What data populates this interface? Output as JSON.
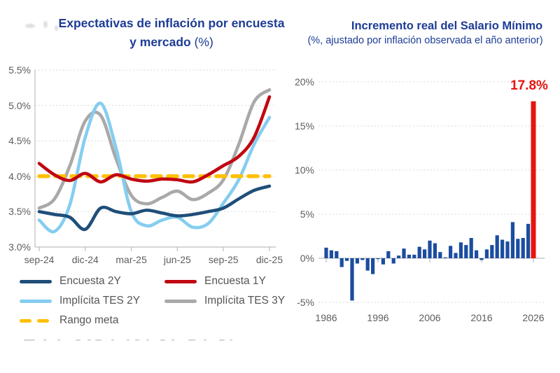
{
  "left_chart": {
    "title_line1": "Expectativas de inflación por encuesta",
    "title_line2": "y mercado",
    "title_unit": "(%)",
    "y_tick_labels": [
      "5.5%",
      "5.0%",
      "4.5%",
      "4.0%",
      "3.5%",
      "3.0%"
    ],
    "x_tick_labels": [
      "sep-24",
      "dic-24",
      "mar-25",
      "jun-25",
      "sep-25",
      "dic-25"
    ],
    "legend": [
      {
        "label": "Encuesta 2Y",
        "color": "#1f4e79",
        "dashed": false
      },
      {
        "label": "Encuesta 1Y",
        "color": "#c00712",
        "dashed": false
      },
      {
        "label": "Implícita TES 2Y",
        "color": "#85cdf0",
        "dashed": false
      },
      {
        "label": "Implícita TES 3Y",
        "color": "#a9a9a9",
        "dashed": false
      },
      {
        "label": "Rango meta",
        "color": "#ffc000",
        "dashed": true
      }
    ]
  },
  "right_chart": {
    "title": "Incremento real del Salario Mínimo",
    "subtitle": "(%, ajustado por inflación observada el año anterior)",
    "y_tick_labels": [
      "20%",
      "15%",
      "10%",
      "5%",
      "0%",
      "-5%"
    ],
    "x_tick_labels": [
      "1986",
      "1996",
      "2006",
      "2016",
      "2026"
    ],
    "annotation_label": "17.8%",
    "annotation_color": "#e8140e"
  },
  "chart_data": [
    {
      "type": "line",
      "title": "Expectativas de inflación por encuesta y mercado (%)",
      "x": [
        "sep-24",
        "oct-24",
        "nov-24",
        "dic-24",
        "ene-25",
        "feb-25",
        "mar-25",
        "abr-25",
        "may-25",
        "jun-25",
        "jul-25",
        "ago-25",
        "sep-25",
        "oct-25",
        "nov-25",
        "dic-25"
      ],
      "ylim": [
        3.0,
        5.5
      ],
      "grid": "dotted-horizontal",
      "legend_position": "bottom",
      "series": [
        {
          "name": "Encuesta 2Y",
          "color": "#1f4e79",
          "z": 4,
          "dashed": false,
          "values": [
            3.5,
            3.46,
            3.42,
            3.25,
            3.55,
            3.5,
            3.47,
            3.52,
            3.48,
            3.44,
            3.46,
            3.5,
            3.55,
            3.68,
            3.8,
            3.86
          ]
        },
        {
          "name": "Encuesta 1Y",
          "color": "#c00712",
          "z": 5,
          "dashed": false,
          "values": [
            4.18,
            4.02,
            3.94,
            4.04,
            3.92,
            4.02,
            3.96,
            3.93,
            3.96,
            3.95,
            3.92,
            4.02,
            4.15,
            4.28,
            4.55,
            5.12
          ]
        },
        {
          "name": "Implícita TES 2Y",
          "color": "#85cdf0",
          "z": 2,
          "dashed": false,
          "values": [
            3.38,
            3.22,
            3.6,
            4.55,
            5.03,
            4.4,
            3.5,
            3.3,
            3.38,
            3.42,
            3.28,
            3.33,
            3.62,
            3.95,
            4.45,
            4.83
          ]
        },
        {
          "name": "Implícita TES 3Y",
          "color": "#a9a9a9",
          "z": 1,
          "dashed": false,
          "values": [
            3.55,
            3.68,
            4.15,
            4.78,
            4.86,
            4.25,
            3.73,
            3.61,
            3.7,
            3.79,
            3.67,
            3.76,
            3.95,
            4.45,
            5.05,
            5.22
          ]
        },
        {
          "name": "Rango meta",
          "color": "#ffc000",
          "z": 3,
          "dashed": true,
          "values": [
            4.0,
            4.0,
            4.0,
            4.0,
            4.0,
            4.0,
            4.0,
            4.0,
            4.0,
            4.0,
            4.0,
            4.0,
            4.0,
            4.0,
            4.0,
            4.0
          ]
        }
      ]
    },
    {
      "type": "bar",
      "title": "Incremento real del Salario Mínimo (%, ajustado por inflación observada el año anterior)",
      "categories": [
        1986,
        1987,
        1988,
        1989,
        1990,
        1991,
        1992,
        1993,
        1994,
        1995,
        1996,
        1997,
        1998,
        1999,
        2000,
        2001,
        2002,
        2003,
        2004,
        2005,
        2006,
        2007,
        2008,
        2009,
        2010,
        2011,
        2012,
        2013,
        2014,
        2015,
        2016,
        2017,
        2018,
        2019,
        2020,
        2021,
        2022,
        2023,
        2024,
        2025,
        2026
      ],
      "values": [
        1.2,
        0.9,
        0.8,
        -1.0,
        -0.3,
        -4.8,
        -0.6,
        -0.2,
        -1.4,
        -1.8,
        -0.1,
        -0.7,
        0.8,
        -0.6,
        0.3,
        1.1,
        0.4,
        0.4,
        1.3,
        1.0,
        2.0,
        1.7,
        0.7,
        0.1,
        1.4,
        0.6,
        1.8,
        1.5,
        2.3,
        0.9,
        -0.2,
        1.0,
        1.5,
        2.6,
        2.1,
        1.9,
        4.1,
        2.2,
        2.3,
        3.9,
        17.8
      ],
      "bar_color": "#1b4da0",
      "highlight": {
        "year": 2026,
        "value": 17.8,
        "color": "#e8140e",
        "label": "17.8%"
      },
      "ylim": [
        -5,
        20
      ],
      "grid": "dotted-horizontal",
      "xlabel": "",
      "ylabel": ""
    }
  ]
}
